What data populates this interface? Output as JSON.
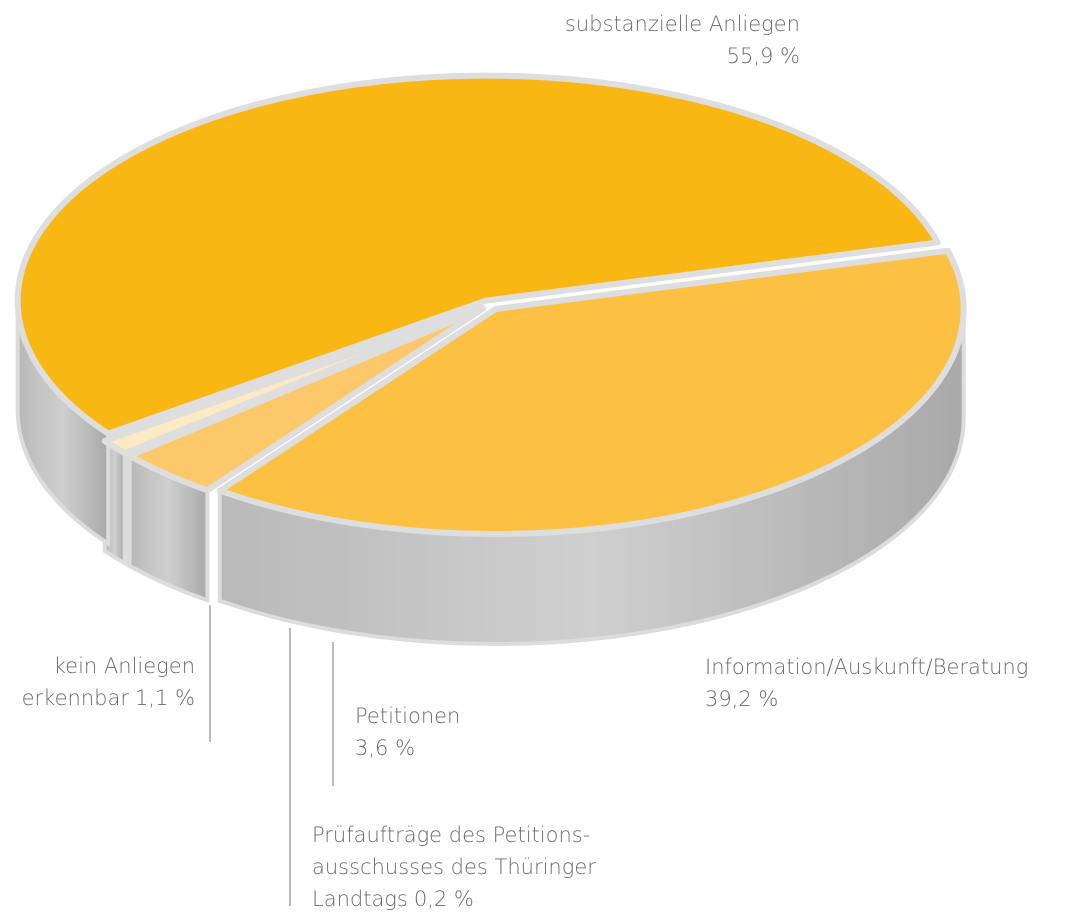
{
  "chart_data": {
    "type": "pie",
    "categories": [
      "Information/Auskunft/Beratung",
      "Petitionen",
      "Prüfaufträge des Petitions-\nausschusses des Thüringer\nLandtags",
      "kein Anliegen\nerkennbar",
      "substanzielle Anliegen"
    ],
    "values": [
      39.2,
      3.6,
      0.2,
      1.1,
      55.9
    ],
    "value_labels": [
      "39,2 %",
      "3,6 %",
      "0,2 %",
      "1,1 %",
      "55,9 %"
    ],
    "colors": [
      "#fcc043",
      "#fcc86a",
      "#fdd98c",
      "#feeac2",
      "#f9b714"
    ]
  }
}
